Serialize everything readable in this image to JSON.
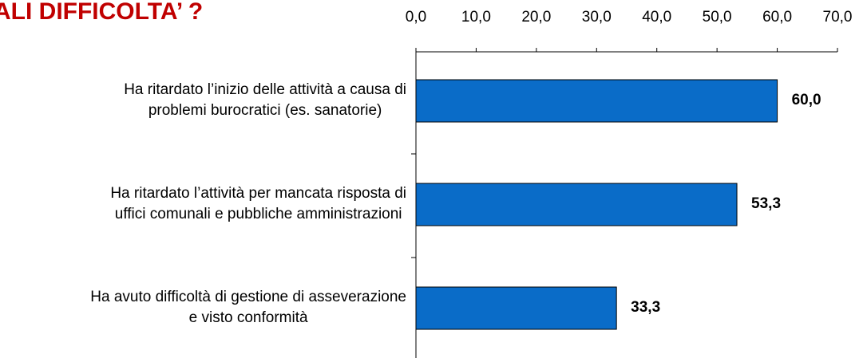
{
  "chart_data": {
    "type": "barh",
    "title": "ALI DIFFICOLTA’ ?",
    "categories": [
      [
        "Ha ritardato l’inizio delle attività a causa di",
        "problemi burocratici (es. sanatorie)"
      ],
      [
        "Ha ritardato l’attività per mancata risposta di",
        "uffici comunali e pubbliche amministrazioni"
      ],
      [
        "Ha avuto difficoltà di gestione di asseverazione",
        "e visto conformità"
      ]
    ],
    "values": [
      60.0,
      53.3,
      33.3
    ],
    "value_labels": [
      "60,0",
      "53,3",
      "33,3"
    ],
    "color": "#0a6cc8",
    "xlim": [
      0,
      70
    ],
    "xticks": [
      {
        "value": 0,
        "label": "0,0"
      },
      {
        "value": 10,
        "label": "10,0"
      },
      {
        "value": 20,
        "label": "20,0"
      },
      {
        "value": 30,
        "label": "30,0"
      },
      {
        "value": 40,
        "label": "40,0"
      },
      {
        "value": 50,
        "label": "50,0"
      },
      {
        "value": 60,
        "label": "60,0"
      },
      {
        "value": 70,
        "label": "70,0"
      }
    ]
  }
}
